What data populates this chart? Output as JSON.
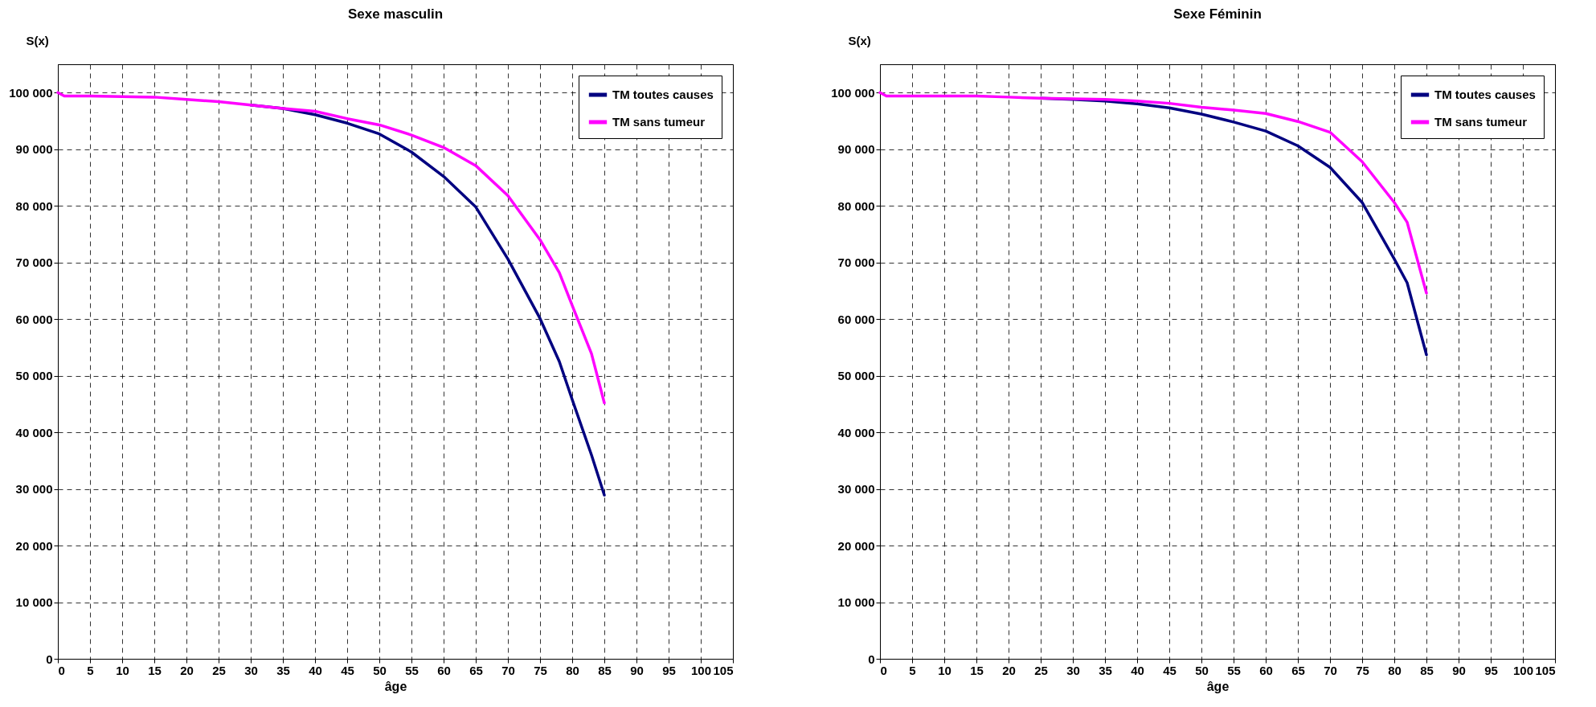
{
  "chart_data": [
    {
      "type": "line",
      "title": "Sexe masculin",
      "xlabel": "âge",
      "ylabel": "S(x)",
      "x": [
        0,
        1,
        5,
        10,
        15,
        20,
        25,
        30,
        35,
        40,
        45,
        50,
        55,
        60,
        65,
        70,
        75,
        78,
        80,
        83,
        85
      ],
      "series": [
        {
          "name": "TM toutes causes",
          "color": "#000080",
          "values": [
            null,
            null,
            null,
            null,
            null,
            null,
            null,
            97800,
            97200,
            96100,
            94600,
            92700,
            89500,
            85200,
            79800,
            70600,
            60100,
            52500,
            45800,
            36000,
            28900
          ]
        },
        {
          "name": "TM sans tumeur",
          "color": "#ff00ff",
          "values": [
            100000,
            99400,
            99400,
            99300,
            99200,
            98800,
            98400,
            97800,
            97200,
            96700,
            95400,
            94300,
            92500,
            90300,
            87100,
            81800,
            74000,
            68200,
            62400,
            53900,
            45200
          ]
        }
      ],
      "xlim": [
        0,
        105
      ],
      "xticks": [
        0,
        5,
        10,
        15,
        20,
        25,
        30,
        35,
        40,
        45,
        50,
        55,
        60,
        65,
        70,
        75,
        80,
        85,
        90,
        95,
        100,
        105
      ],
      "ylim": [
        0,
        105000
      ],
      "yticks": [
        0,
        {
          "value": 10000,
          "label": "10 000"
        },
        {
          "value": 20000,
          "label": "20 000"
        },
        {
          "value": 30000,
          "label": "30 000"
        },
        {
          "value": 40000,
          "label": "40 000"
        },
        {
          "value": 50000,
          "label": "50 000"
        },
        {
          "value": 60000,
          "label": "60 000"
        },
        {
          "value": 70000,
          "label": "70 000"
        },
        {
          "value": 80000,
          "label": "80 000"
        },
        {
          "value": 90000,
          "label": "90 000"
        },
        {
          "value": 100000,
          "label": "100 000"
        }
      ],
      "grid": true,
      "legend": "top right",
      "line_style": "solid",
      "marker": "none"
    },
    {
      "type": "line",
      "title": "Sexe Féminin",
      "xlabel": "âge",
      "ylabel": "S(x)",
      "x": [
        0,
        1,
        5,
        10,
        15,
        20,
        25,
        30,
        35,
        40,
        45,
        50,
        55,
        60,
        65,
        70,
        75,
        80,
        82,
        85
      ],
      "series": [
        {
          "name": "TM toutes causes",
          "color": "#000080",
          "values": [
            null,
            null,
            null,
            null,
            null,
            null,
            99000,
            98800,
            98500,
            98000,
            97300,
            96200,
            94800,
            93200,
            90600,
            86800,
            80600,
            70600,
            66400,
            53700
          ]
        },
        {
          "name": "TM sans tumeur",
          "color": "#ff00ff",
          "values": [
            100000,
            99400,
            99400,
            99400,
            99400,
            99200,
            99000,
            98900,
            98800,
            98500,
            98100,
            97400,
            96900,
            96300,
            94900,
            93000,
            87800,
            80600,
            77100,
            64600
          ]
        }
      ],
      "xlim": [
        0,
        105
      ],
      "xticks": [
        0,
        5,
        10,
        15,
        20,
        25,
        30,
        35,
        40,
        45,
        50,
        55,
        60,
        65,
        70,
        75,
        80,
        85,
        90,
        95,
        100,
        105
      ],
      "ylim": [
        0,
        105000
      ],
      "yticks": [
        0,
        {
          "value": 10000,
          "label": "10 000"
        },
        {
          "value": 20000,
          "label": "20 000"
        },
        {
          "value": 30000,
          "label": "30 000"
        },
        {
          "value": 40000,
          "label": "40 000"
        },
        {
          "value": 50000,
          "label": "50 000"
        },
        {
          "value": 60000,
          "label": "60 000"
        },
        {
          "value": 70000,
          "label": "70 000"
        },
        {
          "value": 80000,
          "label": "80 000"
        },
        {
          "value": 90000,
          "label": "90 000"
        },
        {
          "value": 100000,
          "label": "100 000"
        }
      ],
      "grid": true,
      "legend": "top right",
      "line_style": "solid",
      "marker": "none"
    }
  ]
}
